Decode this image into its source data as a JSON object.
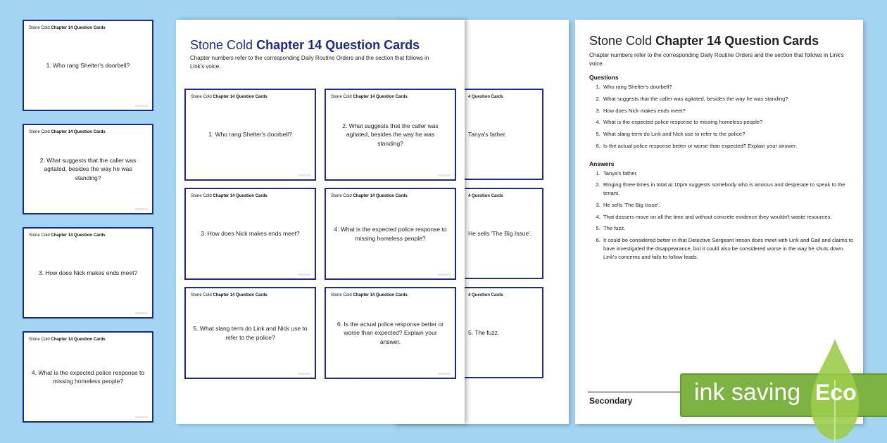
{
  "header": {
    "title_light": "Stone Cold",
    "title_bold": "Chapter 14 Question Cards",
    "subtitle": "Chapter numbers refer to the corresponding Daily Routine Orders and the section that follows in Link's voice."
  },
  "card_header": {
    "light": "Stone Cold",
    "bold": "Chapter 14 Question Cards"
  },
  "questions": [
    "1. Who rang Shelter's doorbell?",
    "2. What suggests that the caller was agitated, besides the way he was standing?",
    "3. How does Nick makes ends meet?",
    "4. What is the expected police response to missing homeless people?",
    "5. What slang term do Link and Nick use to refer to the police?",
    "6. Is the actual police response better or worse than expected? Explain your answer."
  ],
  "answer_cards": [
    "Tanya's father.",
    "He sells 'The Big Issue'.",
    "5. The fuzz."
  ],
  "answer_card_header": "4 Question Cards",
  "sheet": {
    "questions_heading": "Questions",
    "questions": [
      "Who rang Shelter's doorbell?",
      "What suggests that the caller was agitated, besides the way he was standing?",
      "How does Nick makes ends meet?",
      "What is the expected police response to missing homeless people?",
      "What slang term do Link and Nick use to refer to the police?",
      "Is the actual police response better or worse than expected? Explain your answer."
    ],
    "answers_heading": "Answers",
    "answers": [
      "Tanya's father.",
      "Ringing three times in total at 10pm suggests somebody who is anxious and desperate to speak to the tenant.",
      "He sells 'The Big Issue'.",
      "That dossers move on all the time and without concrete evidence they wouldn't waste resources.",
      "The fuzz.",
      "It could be considered better in that Detective Sergeant Ireson does meet with Link and Gail and claims to have investigated the disappearance, but it could also be considered worse in the way he shuts down Link's concerns and fails to follow leads."
    ],
    "footer": "Secondary"
  },
  "badge": {
    "text": "ink saving",
    "eco": "Eco"
  },
  "colors": {
    "background": "#a3d5f3",
    "card_border": "#1c2a8c",
    "badge": "#7cb342"
  }
}
